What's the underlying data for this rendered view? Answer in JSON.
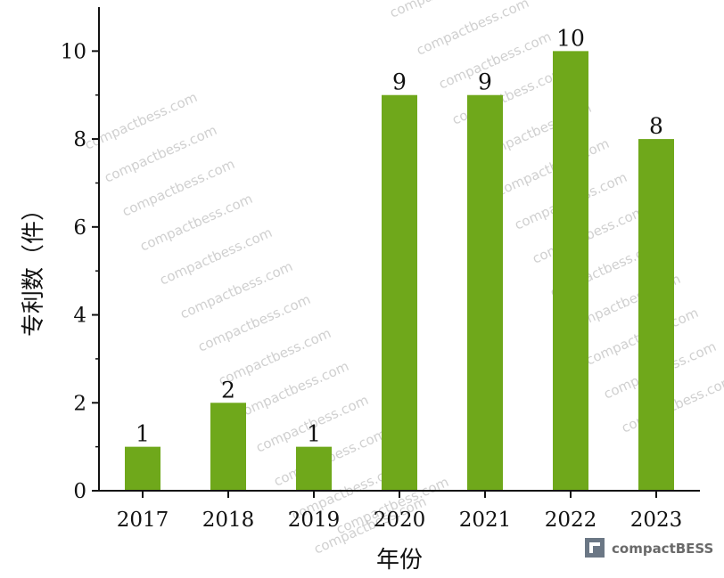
{
  "chart_data": {
    "type": "bar",
    "categories": [
      "2017",
      "2018",
      "2019",
      "2020",
      "2021",
      "2022",
      "2023"
    ],
    "values": [
      1,
      2,
      1,
      9,
      9,
      10,
      8
    ],
    "xlabel": "年份",
    "ylabel": "专利数（件）",
    "ylim": [
      0,
      11
    ],
    "yticks": [
      0,
      2,
      4,
      6,
      8,
      10
    ],
    "bar_color": "#6fa81b",
    "grid": false,
    "legend": "none"
  },
  "watermark": {
    "text": "compactbess.com",
    "brand": "compactBESS"
  }
}
